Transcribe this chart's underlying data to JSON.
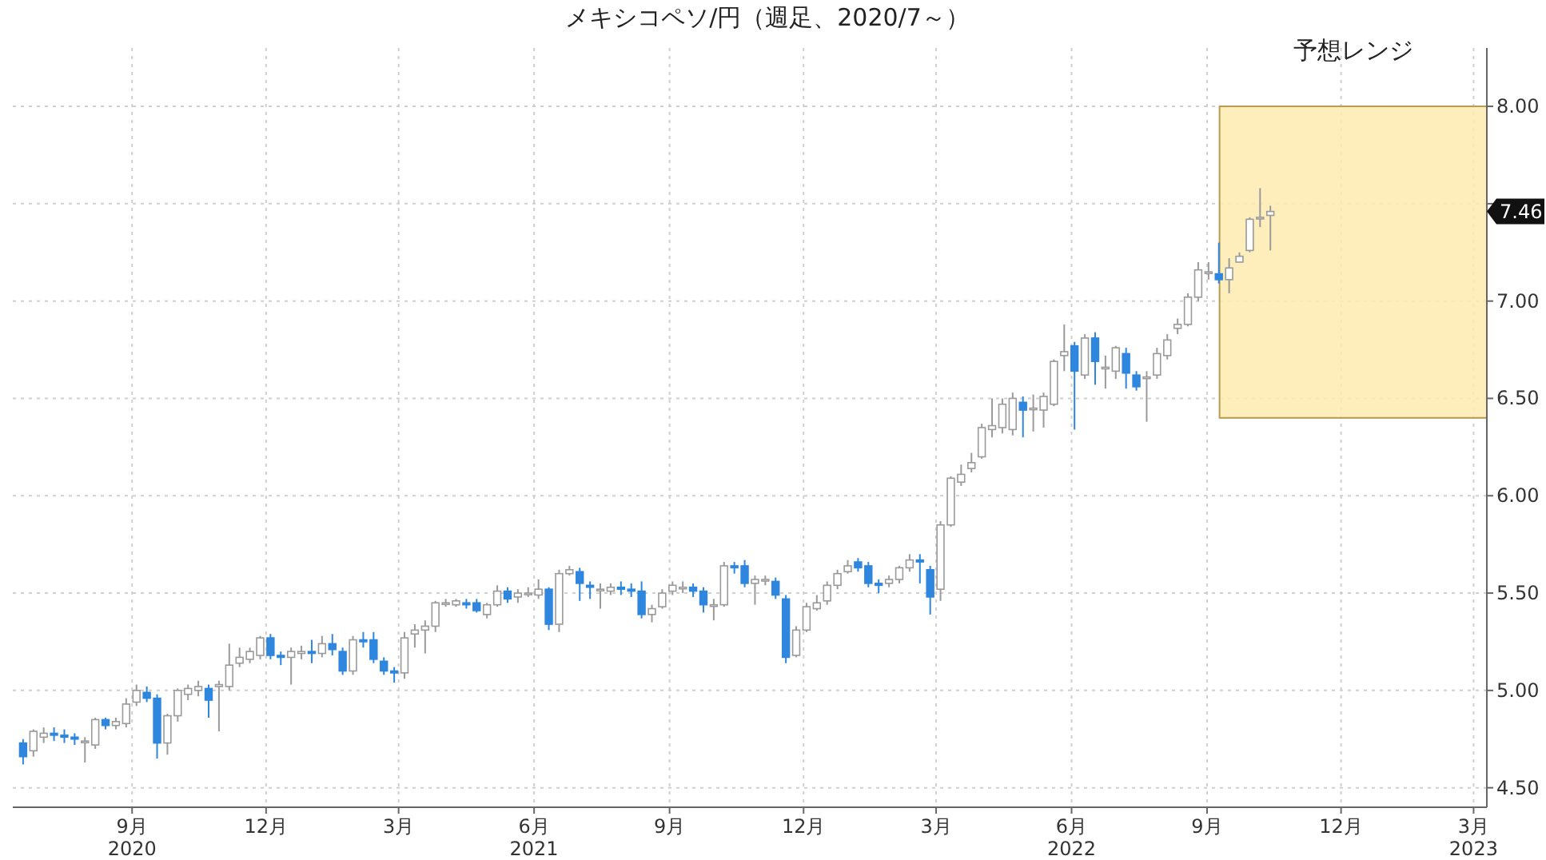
{
  "chart_data": {
    "type": "candlestick",
    "title": "メキシコペソ/円（週足、2020/7～）",
    "x": [
      "2020-07-03",
      "2020-07-10",
      "2020-07-17",
      "2020-07-24",
      "2020-07-31",
      "2020-08-07",
      "2020-08-14",
      "2020-08-21",
      "2020-08-28",
      "2020-09-04",
      "2020-09-11",
      "2020-09-18",
      "2020-09-25",
      "2020-10-02",
      "2020-10-09",
      "2020-10-16",
      "2020-10-23",
      "2020-10-30",
      "2020-11-06",
      "2020-11-13",
      "2020-11-20",
      "2020-11-27",
      "2020-12-04",
      "2020-12-11",
      "2020-12-18",
      "2020-12-25",
      "2021-01-01",
      "2021-01-08",
      "2021-01-15",
      "2021-01-22",
      "2021-01-29",
      "2021-02-05",
      "2021-02-12",
      "2021-02-19",
      "2021-02-26",
      "2021-03-05",
      "2021-03-12",
      "2021-03-19",
      "2021-03-26",
      "2021-04-02",
      "2021-04-09",
      "2021-04-16",
      "2021-04-23",
      "2021-04-30",
      "2021-05-07",
      "2021-05-14",
      "2021-05-21",
      "2021-05-28",
      "2021-06-04",
      "2021-06-11",
      "2021-06-18",
      "2021-06-25",
      "2021-07-02",
      "2021-07-09",
      "2021-07-16",
      "2021-07-23",
      "2021-07-30",
      "2021-08-06",
      "2021-08-13",
      "2021-08-20",
      "2021-08-27",
      "2021-09-03",
      "2021-09-10",
      "2021-09-17",
      "2021-09-24",
      "2021-10-01",
      "2021-10-08",
      "2021-10-15",
      "2021-10-22",
      "2021-10-29",
      "2021-11-05",
      "2021-11-12",
      "2021-11-19",
      "2021-11-26",
      "2021-12-03",
      "2021-12-10",
      "2021-12-17",
      "2021-12-24",
      "2021-12-31",
      "2022-01-07",
      "2022-01-14",
      "2022-01-21",
      "2022-01-28",
      "2022-02-04",
      "2022-02-11",
      "2022-02-18",
      "2022-02-25",
      "2022-03-04",
      "2022-03-11",
      "2022-03-18",
      "2022-03-25",
      "2022-04-01",
      "2022-04-08",
      "2022-04-15",
      "2022-04-22",
      "2022-04-29",
      "2022-05-06",
      "2022-05-13",
      "2022-05-20",
      "2022-05-27",
      "2022-06-03",
      "2022-06-10",
      "2022-06-17",
      "2022-06-24",
      "2022-07-01",
      "2022-07-08",
      "2022-07-15",
      "2022-07-22",
      "2022-07-29",
      "2022-08-05",
      "2022-08-12",
      "2022-08-19",
      "2022-08-26",
      "2022-09-02",
      "2022-09-09",
      "2022-09-16",
      "2022-09-23",
      "2022-09-30",
      "2022-10-07",
      "2022-10-14",
      "2022-10-21",
      "2022-10-28"
    ],
    "ohlc": [
      [
        4.73,
        4.75,
        4.62,
        4.66
      ],
      [
        4.69,
        4.8,
        4.66,
        4.79
      ],
      [
        4.76,
        4.81,
        4.73,
        4.78
      ],
      [
        4.78,
        4.81,
        4.74,
        4.77
      ],
      [
        4.77,
        4.8,
        4.73,
        4.76
      ],
      [
        4.76,
        4.78,
        4.72,
        4.75
      ],
      [
        4.74,
        4.76,
        4.63,
        4.74
      ],
      [
        4.72,
        4.86,
        4.7,
        4.85
      ],
      [
        4.85,
        4.86,
        4.8,
        4.82
      ],
      [
        4.82,
        4.86,
        4.8,
        4.84
      ],
      [
        4.83,
        4.96,
        4.81,
        4.93
      ],
      [
        4.94,
        5.03,
        4.92,
        5.0
      ],
      [
        4.99,
        5.02,
        4.94,
        4.96
      ],
      [
        4.96,
        4.98,
        4.65,
        4.73
      ],
      [
        4.73,
        4.88,
        4.67,
        4.87
      ],
      [
        4.87,
        5.01,
        4.84,
        5.0
      ],
      [
        4.98,
        5.03,
        4.95,
        5.01
      ],
      [
        5.0,
        5.05,
        4.97,
        5.02
      ],
      [
        5.01,
        5.03,
        4.86,
        4.95
      ],
      [
        5.02,
        5.05,
        4.79,
        5.03
      ],
      [
        5.02,
        5.24,
        5.0,
        5.13
      ],
      [
        5.14,
        5.22,
        5.12,
        5.17
      ],
      [
        5.16,
        5.22,
        5.14,
        5.2
      ],
      [
        5.18,
        5.28,
        5.16,
        5.27
      ],
      [
        5.27,
        5.29,
        5.16,
        5.18
      ],
      [
        5.18,
        5.2,
        5.13,
        5.17
      ],
      [
        5.17,
        5.22,
        5.03,
        5.2
      ],
      [
        5.19,
        5.23,
        5.16,
        5.2
      ],
      [
        5.2,
        5.26,
        5.14,
        5.19
      ],
      [
        5.19,
        5.28,
        5.17,
        5.24
      ],
      [
        5.24,
        5.29,
        5.18,
        5.21
      ],
      [
        5.2,
        5.22,
        5.08,
        5.1
      ],
      [
        5.1,
        5.28,
        5.08,
        5.26
      ],
      [
        5.26,
        5.3,
        5.22,
        5.25
      ],
      [
        5.26,
        5.3,
        5.14,
        5.16
      ],
      [
        5.15,
        5.17,
        5.08,
        5.1
      ],
      [
        5.1,
        5.12,
        5.04,
        5.09
      ],
      [
        5.09,
        5.3,
        5.06,
        5.27
      ],
      [
        5.29,
        5.34,
        5.22,
        5.31
      ],
      [
        5.31,
        5.36,
        5.19,
        5.33
      ],
      [
        5.33,
        5.46,
        5.3,
        5.45
      ],
      [
        5.45,
        5.47,
        5.43,
        5.45
      ],
      [
        5.44,
        5.47,
        5.43,
        5.46
      ],
      [
        5.45,
        5.47,
        5.42,
        5.44
      ],
      [
        5.45,
        5.47,
        5.4,
        5.41
      ],
      [
        5.39,
        5.45,
        5.37,
        5.44
      ],
      [
        5.44,
        5.54,
        5.43,
        5.51
      ],
      [
        5.51,
        5.53,
        5.45,
        5.47
      ],
      [
        5.48,
        5.52,
        5.45,
        5.5
      ],
      [
        5.5,
        5.53,
        5.48,
        5.5
      ],
      [
        5.49,
        5.57,
        5.47,
        5.52
      ],
      [
        5.52,
        5.53,
        5.31,
        5.34
      ],
      [
        5.34,
        5.62,
        5.3,
        5.6
      ],
      [
        5.6,
        5.64,
        5.59,
        5.62
      ],
      [
        5.61,
        5.63,
        5.46,
        5.55
      ],
      [
        5.54,
        5.56,
        5.47,
        5.53
      ],
      [
        5.52,
        5.55,
        5.42,
        5.52
      ],
      [
        5.51,
        5.55,
        5.49,
        5.53
      ],
      [
        5.53,
        5.56,
        5.49,
        5.52
      ],
      [
        5.52,
        5.55,
        5.48,
        5.51
      ],
      [
        5.51,
        5.56,
        5.37,
        5.39
      ],
      [
        5.39,
        5.44,
        5.35,
        5.42
      ],
      [
        5.43,
        5.52,
        5.42,
        5.5
      ],
      [
        5.51,
        5.56,
        5.49,
        5.54
      ],
      [
        5.53,
        5.56,
        5.5,
        5.53
      ],
      [
        5.53,
        5.55,
        5.48,
        5.51
      ],
      [
        5.51,
        5.53,
        5.4,
        5.44
      ],
      [
        5.44,
        5.47,
        5.36,
        5.44
      ],
      [
        5.44,
        5.66,
        5.43,
        5.64
      ],
      [
        5.64,
        5.66,
        5.6,
        5.63
      ],
      [
        5.64,
        5.67,
        5.53,
        5.55
      ],
      [
        5.55,
        5.59,
        5.44,
        5.57
      ],
      [
        5.57,
        5.59,
        5.54,
        5.57
      ],
      [
        5.56,
        5.58,
        5.47,
        5.49
      ],
      [
        5.47,
        5.49,
        5.14,
        5.17
      ],
      [
        5.18,
        5.33,
        5.17,
        5.31
      ],
      [
        5.31,
        5.45,
        5.3,
        5.43
      ],
      [
        5.42,
        5.49,
        5.41,
        5.45
      ],
      [
        5.46,
        5.56,
        5.44,
        5.54
      ],
      [
        5.54,
        5.62,
        5.52,
        5.6
      ],
      [
        5.61,
        5.67,
        5.6,
        5.64
      ],
      [
        5.66,
        5.68,
        5.61,
        5.63
      ],
      [
        5.64,
        5.66,
        5.53,
        5.55
      ],
      [
        5.55,
        5.57,
        5.5,
        5.54
      ],
      [
        5.55,
        5.59,
        5.53,
        5.57
      ],
      [
        5.57,
        5.64,
        5.55,
        5.63
      ],
      [
        5.63,
        5.7,
        5.61,
        5.67
      ],
      [
        5.67,
        5.7,
        5.55,
        5.66
      ],
      [
        5.62,
        5.64,
        5.39,
        5.48
      ],
      [
        5.52,
        5.87,
        5.46,
        5.85
      ],
      [
        5.85,
        6.1,
        5.84,
        6.09
      ],
      [
        6.07,
        6.16,
        6.05,
        6.11
      ],
      [
        6.14,
        6.22,
        6.12,
        6.17
      ],
      [
        6.2,
        6.37,
        6.19,
        6.35
      ],
      [
        6.34,
        6.5,
        6.3,
        6.36
      ],
      [
        6.35,
        6.5,
        6.32,
        6.47
      ],
      [
        6.34,
        6.53,
        6.31,
        6.5
      ],
      [
        6.48,
        6.51,
        6.3,
        6.44
      ],
      [
        6.45,
        6.52,
        6.33,
        6.45
      ],
      [
        6.44,
        6.53,
        6.35,
        6.51
      ],
      [
        6.47,
        6.7,
        6.46,
        6.69
      ],
      [
        6.72,
        6.88,
        6.64,
        6.74
      ],
      [
        6.77,
        6.79,
        6.34,
        6.64
      ],
      [
        6.62,
        6.83,
        6.6,
        6.81
      ],
      [
        6.81,
        6.84,
        6.57,
        6.69
      ],
      [
        6.66,
        6.72,
        6.55,
        6.66
      ],
      [
        6.64,
        6.77,
        6.6,
        6.76
      ],
      [
        6.73,
        6.76,
        6.55,
        6.63
      ],
      [
        6.62,
        6.64,
        6.54,
        6.56
      ],
      [
        6.61,
        6.64,
        6.38,
        6.61
      ],
      [
        6.62,
        6.76,
        6.6,
        6.73
      ],
      [
        6.72,
        6.83,
        6.7,
        6.8
      ],
      [
        6.86,
        6.91,
        6.83,
        6.88
      ],
      [
        6.88,
        7.04,
        6.87,
        7.02
      ],
      [
        7.02,
        7.2,
        7.0,
        7.16
      ],
      [
        7.15,
        7.2,
        7.11,
        7.15
      ],
      [
        7.14,
        7.3,
        7.09,
        7.11
      ],
      [
        7.11,
        7.22,
        7.04,
        7.17
      ],
      [
        7.2,
        7.25,
        7.2,
        7.23
      ],
      [
        7.26,
        7.43,
        7.25,
        7.42
      ],
      [
        7.43,
        7.58,
        7.38,
        7.43
      ],
      [
        7.44,
        7.49,
        7.26,
        7.46
      ]
    ],
    "xlim": [
      "2020-06-26",
      "2023-03-24"
    ],
    "xticks": [
      {
        "value": "2020-09-15",
        "label": "9月\n2020"
      },
      {
        "value": "2020-12-15",
        "label": "12月"
      },
      {
        "value": "2021-03-15",
        "label": "3月"
      },
      {
        "value": "2021-06-15",
        "label": "6月\n2021"
      },
      {
        "value": "2021-09-15",
        "label": "9月"
      },
      {
        "value": "2021-12-15",
        "label": "12月"
      },
      {
        "value": "2022-03-15",
        "label": "3月"
      },
      {
        "value": "2022-06-15",
        "label": "6月\n2022"
      },
      {
        "value": "2022-09-15",
        "label": "9月"
      },
      {
        "value": "2022-12-15",
        "label": "12月"
      },
      {
        "value": "2023-03-15",
        "label": "3月\n2023"
      }
    ],
    "ylim": [
      4.4,
      8.3
    ],
    "yticks": [
      {
        "value": 4.5,
        "label": "4.50"
      },
      {
        "value": 5,
        "label": "5.00"
      },
      {
        "value": 5.5,
        "label": "5.50"
      },
      {
        "value": 6,
        "label": "6.00"
      },
      {
        "value": 6.5,
        "label": "6.50"
      },
      {
        "value": 7,
        "label": "7.00"
      },
      {
        "value": 7.5,
        "label": null
      },
      {
        "value": 8,
        "label": "8.00"
      }
    ],
    "grid": true,
    "bands": [
      {
        "axis": "y",
        "from": 6.4,
        "to": 8.0,
        "label": "予想レンジ",
        "color": "#fdebb0"
      }
    ],
    "annotations": [
      "7.46"
    ]
  }
}
